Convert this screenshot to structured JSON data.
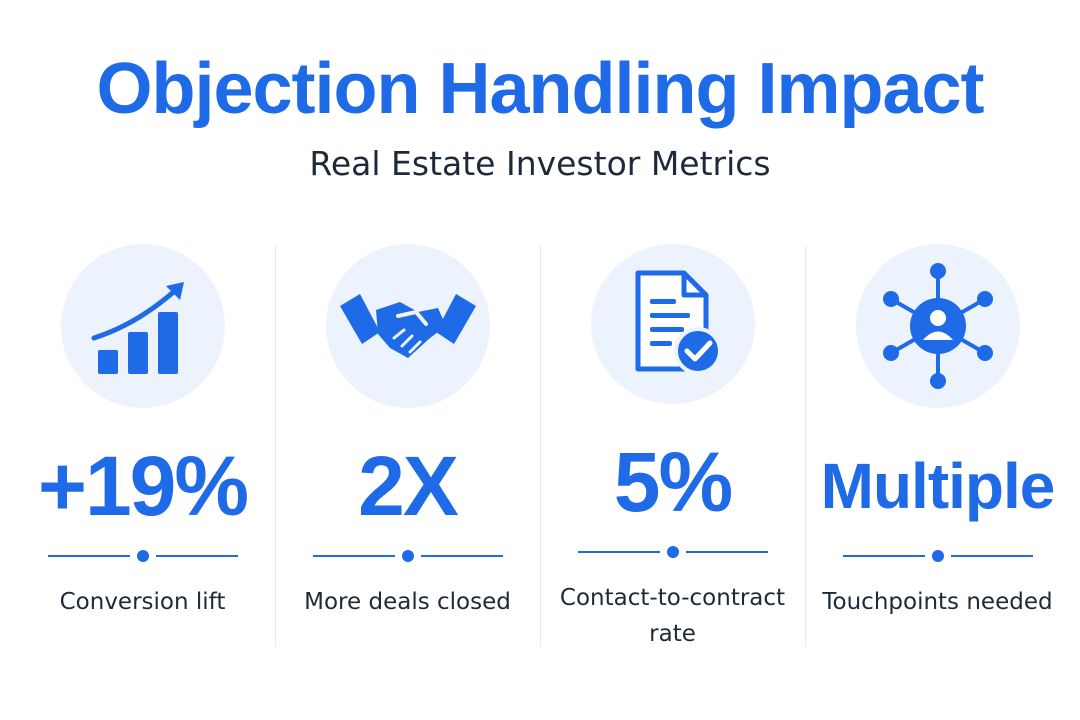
{
  "header": {
    "title": "Objection Handling Impact",
    "subtitle": "Real Estate Investor Metrics"
  },
  "metrics": [
    {
      "value": "+19%",
      "label": "Conversion lift",
      "icon": "growth-chart-icon"
    },
    {
      "value": "2X",
      "label": "More deals closed",
      "icon": "handshake-icon"
    },
    {
      "value": "5%",
      "label": "Contact-to-contract rate",
      "icon": "document-check-icon"
    },
    {
      "value": "Multiple",
      "label": "Touchpoints needed",
      "icon": "network-person-icon"
    }
  ],
  "colors": {
    "accent": "#1f6ae6",
    "text": "#1d2a3a",
    "icon_bg": "#edf3fc",
    "separator": "#e6e9ef"
  }
}
